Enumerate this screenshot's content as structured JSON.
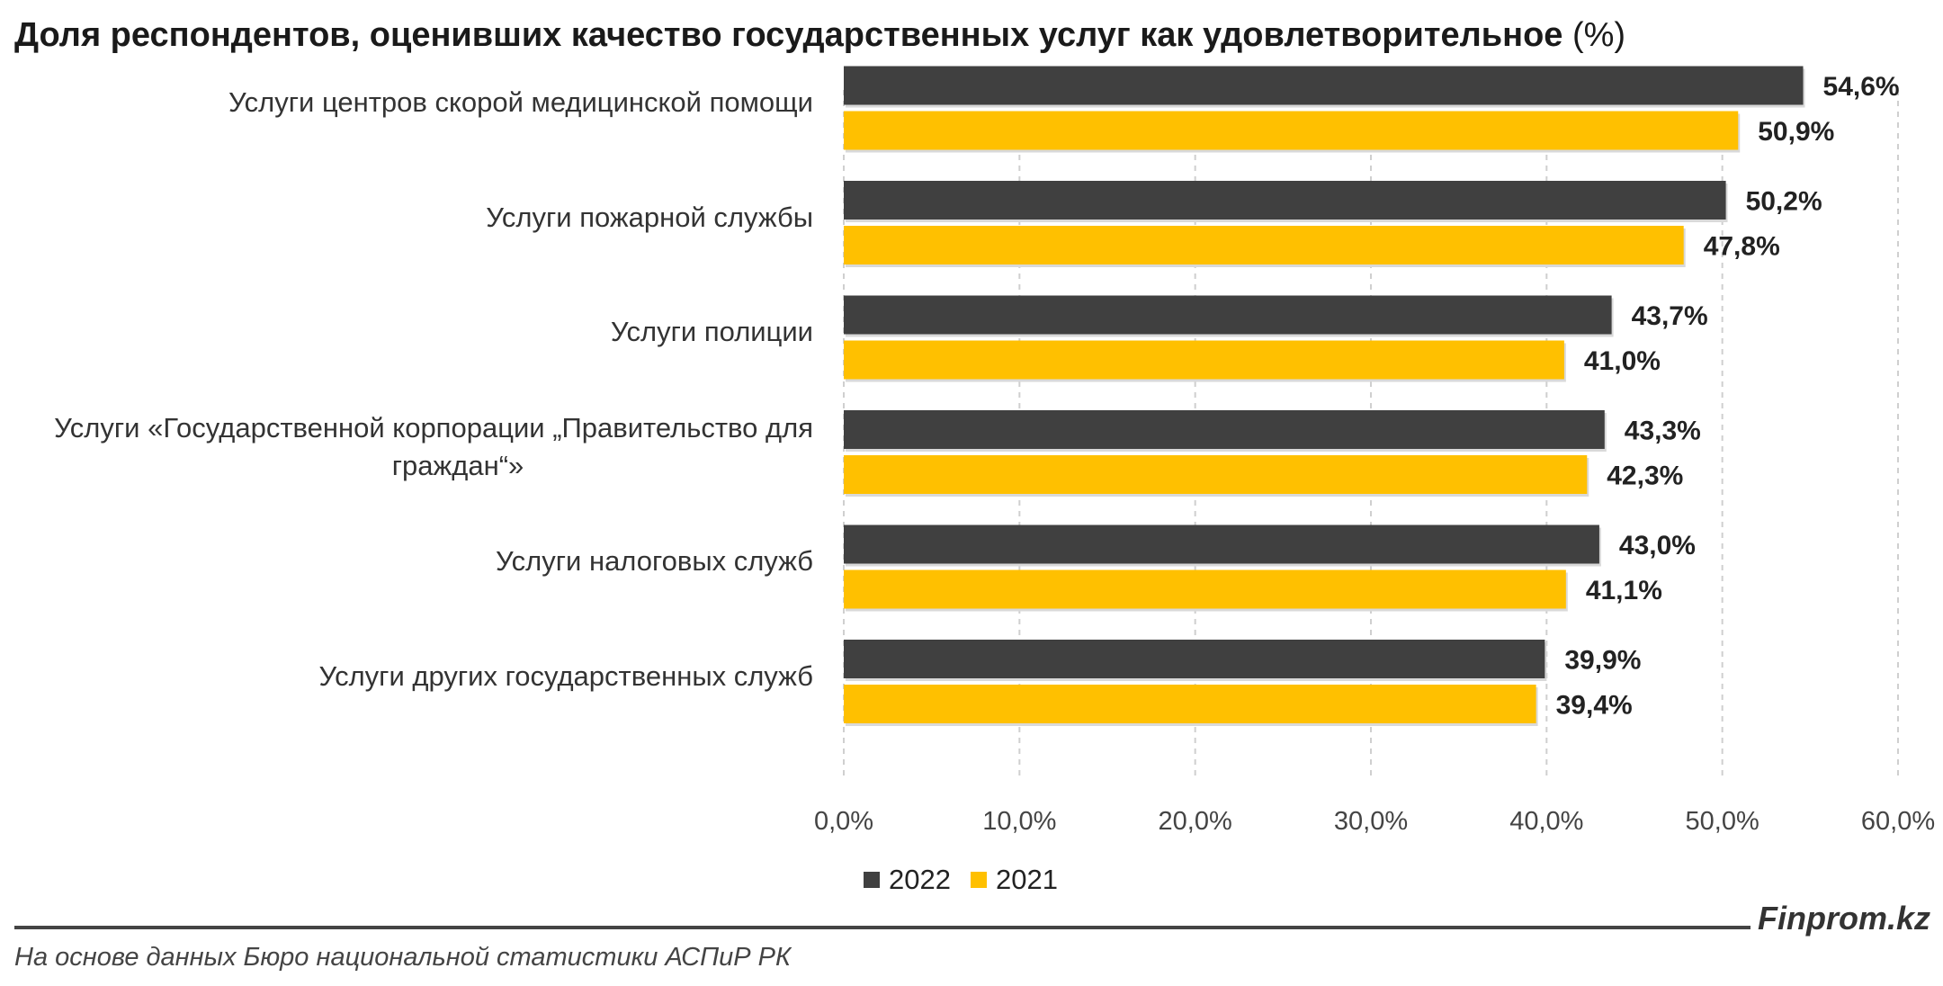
{
  "title": "Доля респондентов, оценивших качество государственных услуг как удовлетворительное",
  "title_unit": "(%)",
  "chart_data": {
    "type": "bar",
    "orientation": "horizontal",
    "categories": [
      "Услуги центров скорой медицинской помощи",
      "Услуги пожарной службы",
      "Услуги полиции",
      "Услуги «Государственной корпорации „Правительство для граждан“»",
      "Услуги налоговых служб",
      "Услуги других государственных служб"
    ],
    "category_lines": [
      [
        "Услуги центров скорой медицинской помощи"
      ],
      [
        "Услуги пожарной службы"
      ],
      [
        "Услуги полиции"
      ],
      [
        "Услуги «Государственной корпорации „Правительство для",
        "граждан“»"
      ],
      [
        "Услуги налоговых служб"
      ],
      [
        "Услуги других государственных служб"
      ]
    ],
    "series": [
      {
        "name": "2022",
        "color": "#404040",
        "values": [
          54.6,
          50.2,
          43.7,
          43.3,
          43.0,
          39.9
        ],
        "labels": [
          "54,6%",
          "50,2%",
          "43,7%",
          "43,3%",
          "43,0%",
          "39,9%"
        ]
      },
      {
        "name": "2021",
        "color": "#ffc000",
        "values": [
          50.9,
          47.8,
          41.0,
          42.3,
          41.1,
          39.4
        ],
        "labels": [
          "50,9%",
          "47,8%",
          "41,0%",
          "42,3%",
          "41,1%",
          "39,4%"
        ]
      }
    ],
    "xlim": [
      0,
      60
    ],
    "ticks": [
      0,
      10,
      20,
      30,
      40,
      50,
      60
    ],
    "tick_labels": [
      "0,0%",
      "10,0%",
      "20,0%",
      "30,0%",
      "40,0%",
      "50,0%",
      "60,0%"
    ],
    "grid": "vertical dashed",
    "legend_position": "bottom"
  },
  "brand": "Finprom.kz",
  "source": "На основе данных Бюро национальной статистики АСПиР РК"
}
